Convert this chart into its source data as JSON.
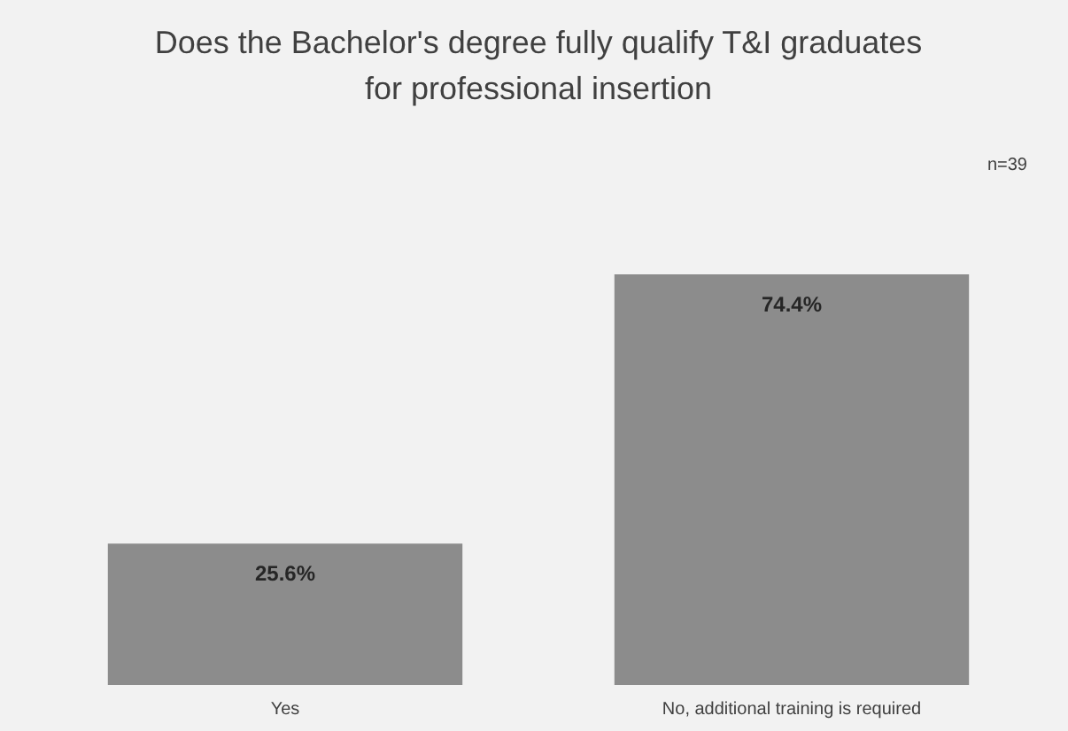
{
  "chart_data": {
    "type": "bar",
    "title": "Does the Bachelor's degree fully qualify T&I graduates for professional insertion",
    "annotations": [
      "n=39"
    ],
    "categories": [
      "Yes",
      "No, additional training is required"
    ],
    "values": [
      25.6,
      74.4
    ],
    "color": "#8c8c8c",
    "data_labels": true,
    "value_labels": [
      "25.6%",
      "74.4%"
    ]
  }
}
